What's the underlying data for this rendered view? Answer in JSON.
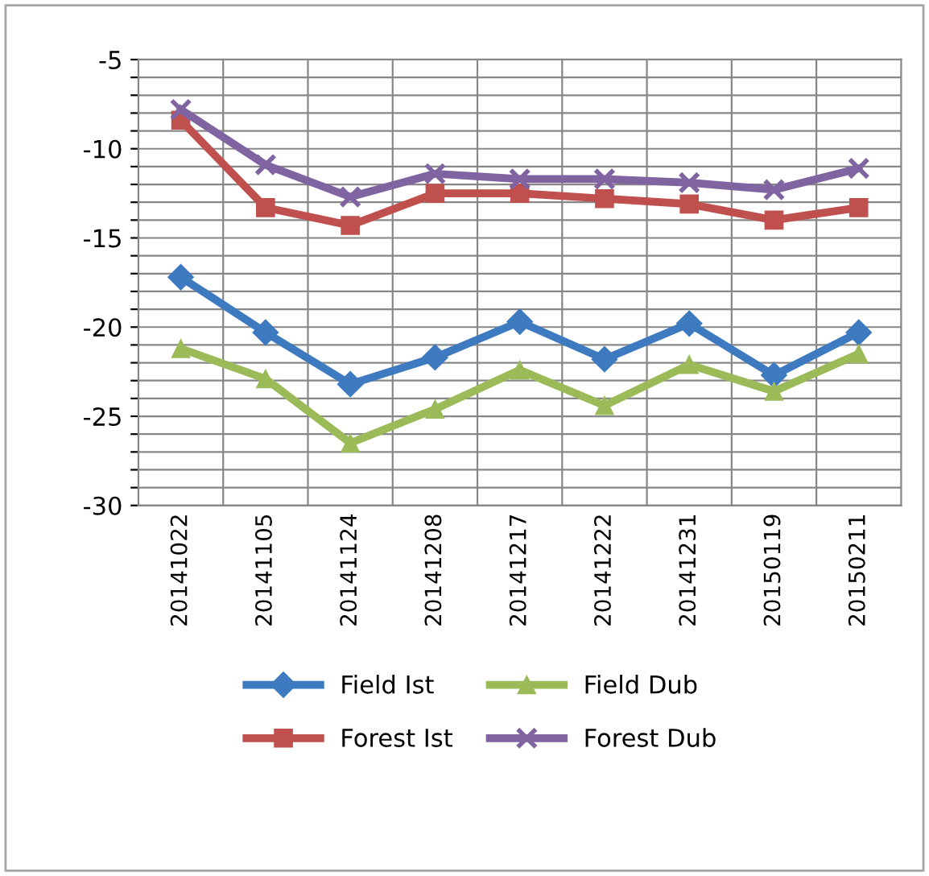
{
  "chart_data": {
    "type": "line",
    "categories": [
      "20141022",
      "20141105",
      "20141124",
      "20141208",
      "20141217",
      "20141222",
      "20141231",
      "20150119",
      "20150211"
    ],
    "series": [
      {
        "name": "Field Ist",
        "color": "#3d7ac0",
        "marker": "diamond",
        "values": [
          -17.2,
          -20.3,
          -23.2,
          -21.7,
          -19.7,
          -21.8,
          -19.8,
          -22.7,
          -20.3
        ]
      },
      {
        "name": "Forest Ist",
        "color": "#c0504d",
        "marker": "square",
        "values": [
          -8.4,
          -13.3,
          -14.3,
          -12.5,
          -12.5,
          -12.8,
          -13.1,
          -14.0,
          -13.3
        ]
      },
      {
        "name": "Field Dub",
        "color": "#9bbb59",
        "marker": "triangle",
        "values": [
          -21.2,
          -22.9,
          -26.5,
          -24.6,
          -22.4,
          -24.4,
          -22.1,
          -23.6,
          -21.5
        ]
      },
      {
        "name": "Forest Dub",
        "color": "#8064a2",
        "marker": "cross",
        "values": [
          -7.8,
          -10.9,
          -12.7,
          -11.4,
          -11.7,
          -11.7,
          -11.9,
          -12.3,
          -11.1
        ]
      }
    ],
    "ylim": [
      -30,
      -5
    ],
    "yticks": [
      -30,
      {
        "value": -29,
        "label": null
      },
      {
        "value": -28,
        "label": null
      },
      {
        "value": -27,
        "label": null
      },
      {
        "value": -26,
        "label": null
      },
      -25,
      {
        "value": -24,
        "label": null
      },
      {
        "value": -23,
        "label": null
      },
      {
        "value": -22,
        "label": null
      },
      {
        "value": -21,
        "label": null
      },
      -20,
      {
        "value": -19,
        "label": null
      },
      {
        "value": -18,
        "label": null
      },
      {
        "value": -17,
        "label": null
      },
      {
        "value": -16,
        "label": null
      },
      -15,
      {
        "value": -14,
        "label": null
      },
      {
        "value": -13,
        "label": null
      },
      {
        "value": -12,
        "label": null
      },
      {
        "value": -11,
        "label": null
      },
      -10,
      {
        "value": -9,
        "label": null
      },
      {
        "value": -8,
        "label": null
      },
      {
        "value": -7,
        "label": null
      },
      {
        "value": -6,
        "label": null
      },
      -5
    ],
    "grid": true,
    "legend": "bottom",
    "line_style": "solid"
  }
}
